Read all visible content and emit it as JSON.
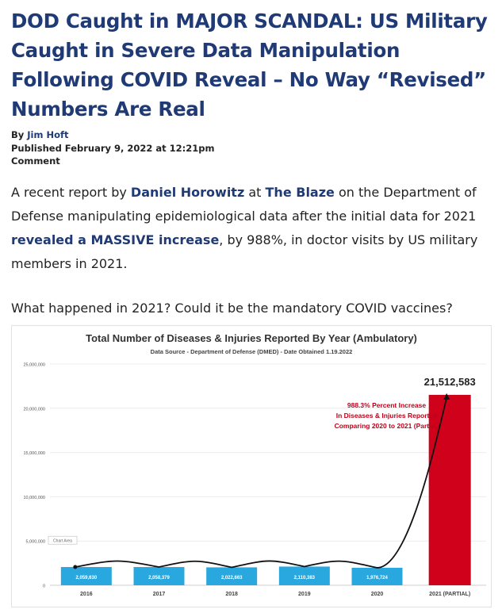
{
  "article": {
    "headline": "DOD Caught in MAJOR SCANDAL: US Military Caught in Severe Data Manipulation Following COVID Reveal – No Way “Revised” Numbers Are Real",
    "byline_prefix": "By ",
    "author": "Jim Hoft",
    "published": "Published February 9, 2022 at 12:21pm",
    "comment": "Comment",
    "p1": {
      "t1": "A recent report by ",
      "l1": "Daniel Horowitz",
      "t2": " at ",
      "l2": "The Blaze",
      "t3": " on the Department of Defense manipulating epidemiological data after the initial data for 2021 ",
      "l3": "revealed a MASSIVE increase",
      "t4": ", by 988%, in doctor visits by US military members in 2021."
    },
    "p2": "What happened in 2021? Could it be the mandatory COVID vaccines?"
  },
  "chart_data": {
    "type": "bar",
    "title": "Total Number of Diseases & Injuries Reported By Year (Ambulatory)",
    "subtitle": "Data Source - Department of Defense (DMED) - Date Obtained 1.19.2022",
    "categories": [
      "2016",
      "2017",
      "2018",
      "2019",
      "2020",
      "2021 (PARTIAL)"
    ],
    "values": [
      2059630,
      2058379,
      2022663,
      2110383,
      1976724,
      21512583
    ],
    "value_labels": [
      "2,059,630",
      "2,058,379",
      "2,022,663",
      "2,110,383",
      "1,976,724",
      "21,512,583"
    ],
    "ylim": [
      0,
      25000000
    ],
    "yticks": [
      0,
      5000000,
      10000000,
      15000000,
      20000000,
      25000000
    ],
    "ytick_labels": [
      "0",
      "5,000,000",
      "10,000,000",
      "15,000,000",
      "20,000,000",
      "25,000,000"
    ],
    "bar_colors": [
      "#29a8e0",
      "#29a8e0",
      "#29a8e0",
      "#29a8e0",
      "#29a8e0",
      "#d0021b"
    ],
    "chart_area_tag": "Chart Area",
    "annotation": {
      "lines": [
        "988.3% Percent Increase",
        "In Diseases & Injuries Reported",
        "Comparing 2020 to 2021 (Partial)"
      ],
      "color": "#c0001a"
    },
    "grid": true,
    "legend": "none"
  }
}
